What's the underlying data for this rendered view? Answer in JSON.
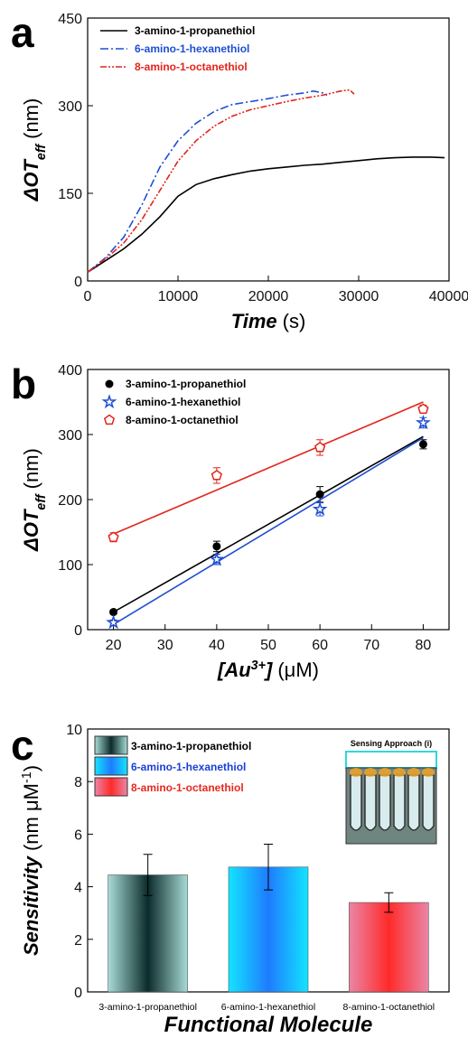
{
  "chart_data": [
    {
      "type": "line",
      "panel_label": "a",
      "x_label": {
        "main": "Time",
        "unit": "(s)"
      },
      "y_label": {
        "main": "ΔOT",
        "sub": "eff",
        "unit": "(nm)"
      },
      "xlim": [
        0,
        40000
      ],
      "xticks": [
        0,
        10000,
        20000,
        30000,
        40000
      ],
      "ylim": [
        0,
        450
      ],
      "yticks": [
        0,
        150,
        300,
        450
      ],
      "legend": "upper left",
      "series": [
        {
          "name": "3-amino-1-propanethiol",
          "color": "#000000",
          "dash": "solid",
          "x": [
            0,
            2000,
            4000,
            6000,
            8000,
            10000,
            12000,
            14000,
            16000,
            18000,
            20000,
            22000,
            24000,
            26000,
            28000,
            30000,
            32000,
            34000,
            36000,
            38000,
            39500
          ],
          "values": [
            15,
            35,
            55,
            80,
            110,
            145,
            165,
            175,
            182,
            188,
            192,
            195,
            198,
            200,
            203,
            206,
            209,
            211,
            212,
            212,
            211
          ]
        },
        {
          "name": "6-amino-1-hexanethiol",
          "color": "#1f4fd1",
          "dash": "dashdot",
          "x": [
            0,
            2000,
            4000,
            6000,
            8000,
            10000,
            12000,
            14000,
            16000,
            18000,
            20000,
            22000,
            24000,
            25000,
            26000,
            26500
          ],
          "values": [
            15,
            40,
            75,
            130,
            195,
            240,
            270,
            290,
            302,
            307,
            312,
            318,
            322,
            325,
            322,
            318
          ]
        },
        {
          "name": "8-amino-1-octanethiol",
          "color": "#e3241b",
          "dash": "dashdotdot",
          "x": [
            0,
            2000,
            4000,
            6000,
            8000,
            10000,
            12000,
            14000,
            16000,
            18000,
            20000,
            22000,
            24000,
            26000,
            28000,
            29000,
            29500
          ],
          "values": [
            15,
            38,
            65,
            105,
            155,
            205,
            240,
            265,
            282,
            293,
            300,
            307,
            313,
            318,
            325,
            327,
            320
          ]
        }
      ]
    },
    {
      "type": "scatter",
      "panel_label": "b",
      "x_label": {
        "main": "[Au",
        "sup": "3+",
        "close": "]",
        "unit": "(μM)"
      },
      "y_label": {
        "main": "ΔOT",
        "sub": "eff",
        "unit": "(nm)"
      },
      "xlim": [
        15,
        85
      ],
      "xticks": [
        20,
        30,
        40,
        50,
        60,
        70,
        80
      ],
      "ylim": [
        0,
        400
      ],
      "yticks": [
        0,
        100,
        200,
        300,
        400
      ],
      "legend": "upper left",
      "series": [
        {
          "name": "3-amino-1-propanethiol",
          "color": "#000000",
          "marker": "circle",
          "x": [
            20,
            40,
            60,
            80
          ],
          "values": [
            27,
            128,
            208,
            285
          ],
          "errors": [
            3,
            8,
            12,
            7
          ],
          "fit": {
            "x": [
              20,
              80
            ],
            "values": [
              27,
              297
            ]
          }
        },
        {
          "name": "6-amino-1-hexanethiol",
          "color": "#1f4fd1",
          "marker": "star",
          "x": [
            20,
            40,
            60,
            80
          ],
          "values": [
            11,
            108,
            185,
            318
          ],
          "errors": [
            4,
            8,
            10,
            8
          ],
          "fit": {
            "x": [
              20,
              80
            ],
            "values": [
              8,
              295
            ]
          }
        },
        {
          "name": "8-amino-1-octanethiol",
          "color": "#e3241b",
          "marker": "pentagon",
          "x": [
            20,
            40,
            60,
            80
          ],
          "values": [
            142,
            237,
            280,
            339
          ],
          "errors": [
            7,
            12,
            12,
            6
          ],
          "fit": {
            "x": [
              20,
              80
            ],
            "values": [
              147,
              350
            ]
          }
        }
      ]
    },
    {
      "type": "bar",
      "panel_label": "c",
      "x_label": {
        "main": "Functional Molecule"
      },
      "y_label": {
        "main": "Sensitivity",
        "unit": "(nm μM",
        "sup": "-1",
        "close": ")"
      },
      "ylim": [
        0,
        10
      ],
      "yticks": [
        0,
        2,
        4,
        6,
        8,
        10
      ],
      "legend": "upper left",
      "categories": [
        "3-amino-1-propanethiol",
        "6-amino-1-hexanethiol",
        "8-amino-1-octanethiol"
      ],
      "values": [
        4.45,
        4.75,
        3.4
      ],
      "errors": [
        0.78,
        0.87,
        0.37
      ],
      "colors": [
        "#0b2b2b",
        "#1e7bff",
        "#ff2a2a"
      ],
      "edge_colors": [
        "#a8dcd6",
        "#14e4ff",
        "#ea86a6"
      ],
      "legend_colors": [
        "#000000",
        "#1a3fd6",
        "#e8281e"
      ],
      "inset_title": "Sensing Approach (i)"
    }
  ]
}
